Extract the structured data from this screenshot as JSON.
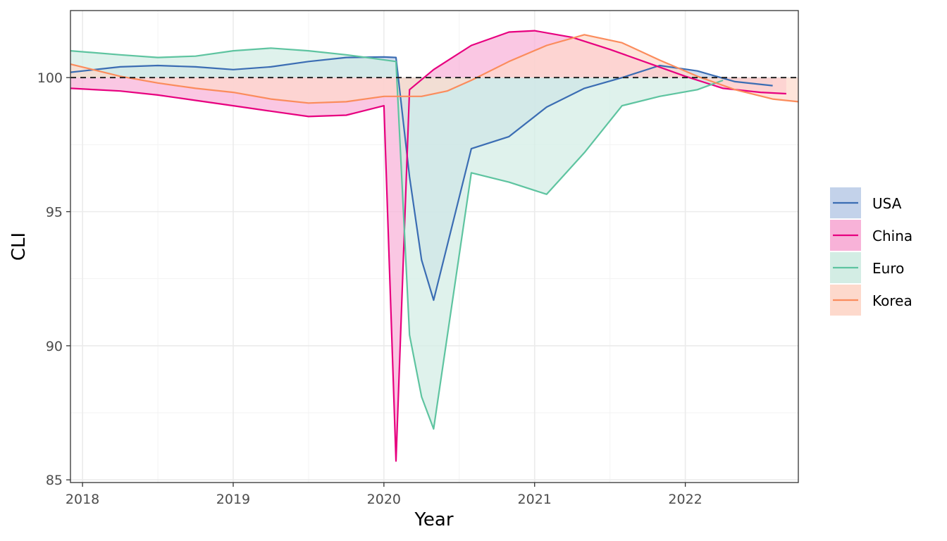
{
  "chart_data": {
    "type": "area",
    "title": "",
    "xlabel": "Year",
    "ylabel": "CLI",
    "xlim": [
      2017.92,
      2022.75
    ],
    "ylim": [
      84.9,
      102.5
    ],
    "x_ticks": [
      2018,
      2019,
      2020,
      2021,
      2022
    ],
    "y_ticks": [
      85,
      90,
      95,
      100
    ],
    "reference_line": {
      "y": 100,
      "style": "dashed"
    },
    "grid": true,
    "legend_position": "right",
    "series": [
      {
        "name": "USA",
        "color": "#3b6db3",
        "fill": "#c3d2ea",
        "points": [
          [
            2017.92,
            100.2
          ],
          [
            2018.25,
            100.4
          ],
          [
            2018.5,
            100.45
          ],
          [
            2018.75,
            100.4
          ],
          [
            2019.0,
            100.3
          ],
          [
            2019.25,
            100.4
          ],
          [
            2019.5,
            100.6
          ],
          [
            2019.75,
            100.75
          ],
          [
            2020.0,
            100.77
          ],
          [
            2020.08,
            100.75
          ],
          [
            2020.17,
            96.3
          ],
          [
            2020.25,
            93.2
          ],
          [
            2020.33,
            91.7
          ],
          [
            2020.58,
            97.35
          ],
          [
            2020.83,
            97.8
          ],
          [
            2021.08,
            98.9
          ],
          [
            2021.33,
            99.6
          ],
          [
            2021.58,
            100.0
          ],
          [
            2021.83,
            100.45
          ],
          [
            2022.08,
            100.25
          ],
          [
            2022.33,
            99.85
          ],
          [
            2022.58,
            99.7
          ]
        ]
      },
      {
        "name": "China",
        "color": "#e7007f",
        "fill": "#f8b2d8",
        "points": [
          [
            2017.92,
            99.6
          ],
          [
            2018.25,
            99.5
          ],
          [
            2018.5,
            99.35
          ],
          [
            2018.75,
            99.15
          ],
          [
            2019.0,
            98.95
          ],
          [
            2019.25,
            98.75
          ],
          [
            2019.5,
            98.55
          ],
          [
            2019.75,
            98.6
          ],
          [
            2020.0,
            98.95
          ],
          [
            2020.08,
            85.7
          ],
          [
            2020.17,
            99.55
          ],
          [
            2020.33,
            100.3
          ],
          [
            2020.58,
            101.2
          ],
          [
            2020.83,
            101.7
          ],
          [
            2021.0,
            101.75
          ],
          [
            2021.25,
            101.5
          ],
          [
            2021.5,
            101.05
          ],
          [
            2021.75,
            100.55
          ],
          [
            2022.0,
            100.05
          ],
          [
            2022.25,
            99.6
          ],
          [
            2022.5,
            99.45
          ],
          [
            2022.67,
            99.4
          ]
        ]
      },
      {
        "name": "Euro",
        "color": "#5ec4a0",
        "fill": "#d3ede4",
        "points": [
          [
            2017.92,
            101.0
          ],
          [
            2018.25,
            100.85
          ],
          [
            2018.5,
            100.75
          ],
          [
            2018.75,
            100.8
          ],
          [
            2019.0,
            101.0
          ],
          [
            2019.25,
            101.1
          ],
          [
            2019.5,
            101.0
          ],
          [
            2019.75,
            100.85
          ],
          [
            2020.08,
            100.6
          ],
          [
            2020.17,
            90.4
          ],
          [
            2020.25,
            88.1
          ],
          [
            2020.33,
            86.9
          ],
          [
            2020.58,
            96.45
          ],
          [
            2020.83,
            96.1
          ],
          [
            2021.08,
            95.65
          ],
          [
            2021.33,
            97.2
          ],
          [
            2021.58,
            98.95
          ],
          [
            2021.83,
            99.3
          ],
          [
            2022.08,
            99.55
          ],
          [
            2022.25,
            99.9
          ]
        ]
      },
      {
        "name": "Korea",
        "color": "#fb8c5c",
        "fill": "#fdd9cc",
        "points": [
          [
            2017.92,
            100.5
          ],
          [
            2018.25,
            100.05
          ],
          [
            2018.5,
            99.8
          ],
          [
            2018.75,
            99.6
          ],
          [
            2019.0,
            99.45
          ],
          [
            2019.25,
            99.2
          ],
          [
            2019.5,
            99.05
          ],
          [
            2019.75,
            99.1
          ],
          [
            2020.0,
            99.3
          ],
          [
            2020.25,
            99.3
          ],
          [
            2020.42,
            99.5
          ],
          [
            2020.58,
            99.9
          ],
          [
            2020.83,
            100.6
          ],
          [
            2021.08,
            101.2
          ],
          [
            2021.33,
            101.6
          ],
          [
            2021.58,
            101.3
          ],
          [
            2021.83,
            100.65
          ],
          [
            2022.08,
            100.05
          ],
          [
            2022.33,
            99.55
          ],
          [
            2022.58,
            99.2
          ],
          [
            2022.75,
            99.1
          ]
        ]
      }
    ]
  }
}
